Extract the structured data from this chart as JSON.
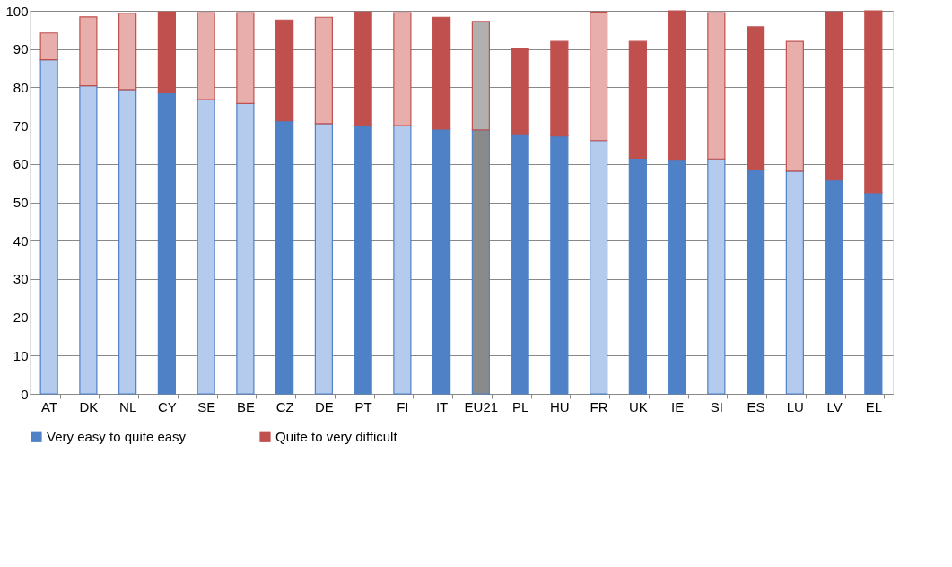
{
  "chart_data": {
    "type": "bar",
    "stacked": true,
    "categories": [
      "AT",
      "DK",
      "NL",
      "CY",
      "SE",
      "BE",
      "CZ",
      "DE",
      "PT",
      "FI",
      "IT",
      "EU21",
      "PL",
      "HU",
      "FR",
      "UK",
      "IE",
      "SI",
      "ES",
      "LU",
      "LV",
      "EL"
    ],
    "series": [
      {
        "name": "Very easy to quite easy",
        "color": "#4f81c7",
        "values": [
          87.2,
          80.4,
          79.4,
          78.6,
          76.8,
          75.8,
          71.3,
          70.5,
          70.1,
          70.0,
          69.1,
          68.9,
          67.9,
          67.3,
          66.1,
          61.5,
          61.2,
          61.3,
          58.7,
          58.1,
          55.8,
          52.5
        ],
        "colors": [
          "#b5cbee",
          "#b5cbee",
          "#b5cbee",
          "#4f81c7",
          "#b5cbee",
          "#b5cbee",
          "#4f81c7",
          "#b5cbee",
          "#4f81c7",
          "#b5cbee",
          "#4f81c7",
          "#8a8a8a",
          "#4f81c7",
          "#4f81c7",
          "#b5cbee",
          "#4f81c7",
          "#4f81c7",
          "#b5cbee",
          "#4f81c7",
          "#b5cbee",
          "#4f81c7",
          "#4f81c7"
        ]
      },
      {
        "name": "Quite to very difficult",
        "color": "#c0504d",
        "values": [
          7.0,
          18.0,
          20.0,
          21.1,
          22.7,
          23.7,
          26.3,
          27.8,
          29.6,
          29.5,
          29.2,
          28.3,
          22.1,
          24.7,
          33.6,
          30.5,
          38.8,
          38.2,
          37.1,
          33.9,
          43.9,
          47.5
        ],
        "colors": [
          "#e8aeac",
          "#e8aeac",
          "#e8aeac",
          "#c0504d",
          "#e8aeac",
          "#e8aeac",
          "#c0504d",
          "#e8aeac",
          "#c0504d",
          "#e8aeac",
          "#c0504d",
          "#b0b0b0",
          "#c0504d",
          "#c0504d",
          "#e8aeac",
          "#c0504d",
          "#c0504d",
          "#e8aeac",
          "#c0504d",
          "#e8aeac",
          "#c0504d",
          "#c0504d"
        ]
      }
    ],
    "ylim": [
      0,
      100
    ],
    "yticks": [
      0,
      10,
      20,
      30,
      40,
      50,
      60,
      70,
      80,
      90,
      100
    ],
    "grid": "y",
    "legend": "bottom"
  }
}
